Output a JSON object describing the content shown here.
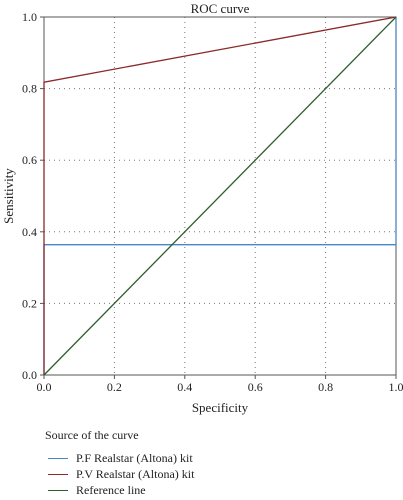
{
  "chart_data": {
    "type": "line",
    "title": "ROC curve",
    "xlabel": "Specificity",
    "ylabel": "Sensitivity",
    "xlim": [
      0.0,
      1.0
    ],
    "ylim": [
      0.0,
      1.0
    ],
    "x_ticks": [
      "0.0",
      "0.2",
      "0.4",
      "0.6",
      "0.8",
      "1.0"
    ],
    "y_ticks": [
      "0.0",
      "0.2",
      "0.4",
      "0.6",
      "0.8",
      "1.0"
    ],
    "grid": true,
    "legend_position": "bottom",
    "legend_title": "Source of the curve",
    "series": [
      {
        "name": "P.F Realstar (Altona) kit",
        "color": "#4a86c5",
        "points": [
          [
            0.0,
            0.0
          ],
          [
            0.0,
            0.364
          ],
          [
            1.0,
            0.364
          ],
          [
            1.0,
            1.0
          ]
        ]
      },
      {
        "name": "P.V Realstar (Altona) kit",
        "color": "#8b2a2a",
        "points": [
          [
            0.0,
            0.0
          ],
          [
            0.0,
            0.818
          ],
          [
            1.0,
            1.0
          ]
        ]
      },
      {
        "name": "Reference line",
        "color": "#2e5e2e",
        "points": [
          [
            0.0,
            0.0
          ],
          [
            1.0,
            1.0
          ]
        ]
      }
    ]
  }
}
